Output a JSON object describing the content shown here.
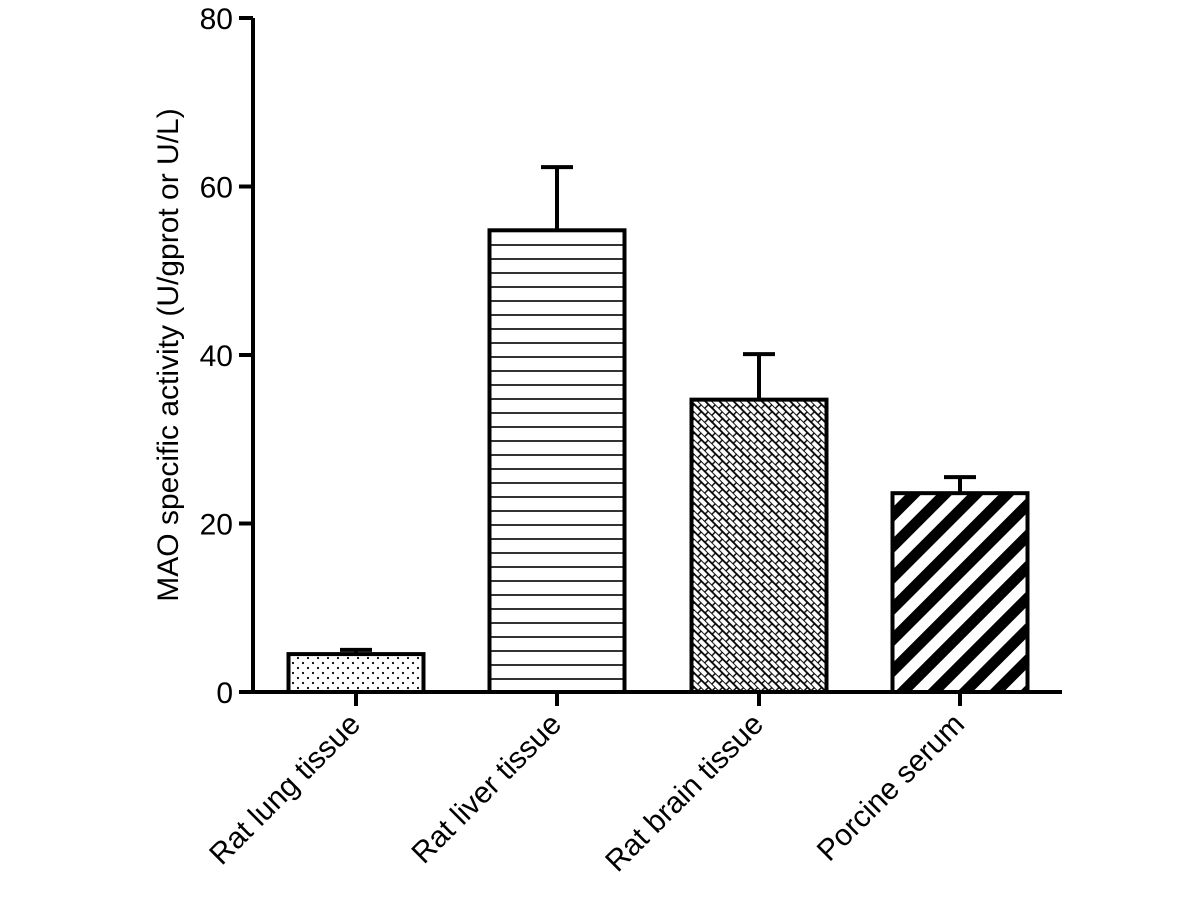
{
  "chart_data": {
    "type": "bar",
    "title": "",
    "xlabel": "",
    "ylabel": "MAO specific activity (U/gprot or U/L)",
    "ylim": [
      0,
      80
    ],
    "yticks": [
      0,
      20,
      40,
      60,
      80
    ],
    "grid": false,
    "categories": [
      "Rat lung tissue",
      "Rat liver tissue",
      "Rat brain tissue",
      "Porcine serum"
    ],
    "values": [
      4.5,
      54.8,
      34.7,
      23.6
    ],
    "error_upper": [
      0.5,
      7.5,
      5.4,
      1.9
    ],
    "patterns": [
      "dots",
      "horizontal-lines",
      "brick-crosshatch",
      "diagonal-stripes"
    ],
    "colors": {
      "fill": "#ffffff",
      "ink": "#000000"
    }
  }
}
